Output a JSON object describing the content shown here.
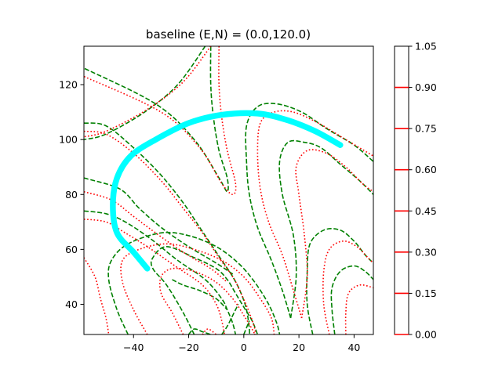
{
  "chart_data": {
    "type": "contour",
    "title": "baseline (E,N) = (0.0,120.0)",
    "xlabel": "",
    "ylabel": "",
    "xlim": [
      -58,
      47
    ],
    "ylim": [
      29,
      134
    ],
    "x_ticks": [
      -40,
      -20,
      0,
      20,
      40
    ],
    "x_tick_labels": [
      "−40",
      "−20",
      "0",
      "20",
      "40"
    ],
    "y_ticks": [
      40,
      60,
      80,
      100,
      120
    ],
    "y_tick_labels": [
      "40",
      "60",
      "80",
      "100",
      "120"
    ],
    "grid": false,
    "colorbar": {
      "range": [
        0.0,
        1.05
      ],
      "ticks": [
        0.0,
        0.15,
        0.3,
        0.45,
        0.6,
        0.75,
        0.9,
        1.05
      ],
      "tick_labels": [
        "0.00",
        "0.15",
        "0.30",
        "0.45",
        "0.60",
        "0.75",
        "0.90",
        "1.05"
      ],
      "line_levels": [
        0.0,
        0.15,
        0.3,
        0.45,
        0.6,
        0.75,
        0.9
      ],
      "line_color": "#ff0000"
    },
    "series": [
      {
        "style": "dashed",
        "color": "#008000",
        "contours": [
          [
            [
              -12,
              134
            ],
            [
              -12,
              120
            ],
            [
              -11,
              108
            ],
            [
              -9,
              96
            ],
            [
              -6,
              86
            ],
            [
              -6,
              81
            ],
            [
              -9,
              86
            ],
            [
              -18,
              100
            ],
            [
              -32,
              113
            ],
            [
              -58,
              126
            ]
          ],
          [
            [
              -58,
              106
            ],
            [
              -50,
              105
            ],
            [
              -40,
              97
            ],
            [
              -30,
              87
            ],
            [
              -22,
              77
            ],
            [
              -16,
              68
            ],
            [
              -10,
              59
            ],
            [
              -4,
              50
            ],
            [
              -1,
              44
            ],
            [
              1,
              38
            ],
            [
              2,
              31
            ],
            [
              2,
              29
            ]
          ],
          [
            [
              -58,
              86
            ],
            [
              -45,
              82
            ],
            [
              -38,
              75
            ],
            [
              -30,
              68
            ],
            [
              -20,
              61
            ],
            [
              -10,
              55
            ],
            [
              -4,
              51
            ]
          ],
          [
            [
              -58,
              74
            ],
            [
              -50,
              73
            ],
            [
              -43,
              70
            ],
            [
              -34,
              64
            ],
            [
              -24,
              56
            ],
            [
              -14,
              49
            ],
            [
              -8,
              42
            ],
            [
              -6,
              38
            ],
            [
              -4,
              33
            ],
            [
              -3,
              29
            ]
          ],
          [
            [
              -18,
              29
            ],
            [
              -22,
              37
            ],
            [
              -28,
              47
            ],
            [
              -33,
              53
            ],
            [
              -33,
              57
            ],
            [
              -28,
              61
            ],
            [
              -18,
              57
            ],
            [
              -10,
              53
            ],
            [
              -6,
              49
            ],
            [
              -3,
              44
            ],
            [
              0,
              39
            ],
            [
              3,
              34
            ],
            [
              5,
              29
            ]
          ],
          [
            [
              -42,
              29
            ],
            [
              -46,
              38
            ],
            [
              -49,
              49
            ],
            [
              -48,
              56
            ],
            [
              -42,
              62
            ],
            [
              -30,
              66
            ],
            [
              -20,
              65
            ],
            [
              -10,
              61
            ],
            [
              -2,
              55
            ],
            [
              4,
              48
            ],
            [
              9,
              40
            ],
            [
              12,
              33
            ],
            [
              13,
              29
            ]
          ],
          [
            [
              -20,
              29
            ],
            [
              -18,
              31
            ],
            [
              -15,
              30
            ],
            [
              -12,
              29
            ]
          ],
          [
            [
              0,
              29
            ],
            [
              2,
              34
            ]
          ],
          [
            [
              -26,
              49
            ],
            [
              -22,
              47
            ],
            [
              -16,
              45
            ],
            [
              -10,
              42
            ],
            [
              -6,
              38
            ]
          ],
          [
            [
              17,
              35
            ],
            [
              14,
              45
            ],
            [
              10,
              56
            ],
            [
              5,
              68
            ],
            [
              2,
              80
            ],
            [
              1,
              92
            ],
            [
              1,
              105
            ],
            [
              5,
              112
            ],
            [
              12,
              113
            ],
            [
              21,
              110
            ],
            [
              30,
              104
            ],
            [
              40,
              98
            ],
            [
              47,
              92
            ]
          ],
          [
            [
              17,
              35
            ],
            [
              19,
              50
            ],
            [
              18,
              65
            ],
            [
              14,
              80
            ],
            [
              13,
              92
            ],
            [
              16,
              99
            ],
            [
              22,
              99
            ],
            [
              28,
              97
            ],
            [
              35,
              91
            ],
            [
              42,
              85
            ],
            [
              47,
              80
            ]
          ],
          [
            [
              25,
              29
            ],
            [
              23,
              40
            ],
            [
              23,
              52
            ],
            [
              24,
              62
            ],
            [
              29,
              67
            ],
            [
              35,
              67
            ],
            [
              40,
              63
            ],
            [
              44,
              58
            ],
            [
              47,
              55
            ]
          ],
          [
            [
              33,
              29
            ],
            [
              32,
              38
            ],
            [
              32,
              46
            ],
            [
              35,
              52
            ],
            [
              40,
              54
            ],
            [
              44,
              52
            ],
            [
              47,
              49
            ]
          ],
          [
            [
              -8,
              29
            ],
            [
              -6,
              32
            ],
            [
              -4,
              36
            ],
            [
              -2,
              40
            ]
          ],
          [
            [
              -14,
              134
            ],
            [
              -24,
              120
            ],
            [
              -36,
              110
            ],
            [
              -50,
              102
            ],
            [
              -58,
              100
            ]
          ]
        ]
      },
      {
        "style": "dotted",
        "color": "#ff0000",
        "contours": [
          [
            [
              -9,
              134
            ],
            [
              -9,
              120
            ],
            [
              -8,
              108
            ],
            [
              -6,
              96
            ],
            [
              -3,
              84
            ],
            [
              -4,
              80
            ],
            [
              -8,
              84
            ],
            [
              -16,
              97
            ],
            [
              -30,
              110
            ],
            [
              -58,
              123
            ]
          ],
          [
            [
              -58,
              103
            ],
            [
              -50,
              102
            ],
            [
              -40,
              95
            ],
            [
              -30,
              85
            ],
            [
              -22,
              75
            ],
            [
              -15,
              66
            ],
            [
              -9,
              57
            ],
            [
              -4,
              50
            ],
            [
              -1,
              44
            ],
            [
              2,
              37
            ],
            [
              4,
              31
            ],
            [
              4,
              29
            ]
          ],
          [
            [
              -58,
              81
            ],
            [
              -48,
              78
            ],
            [
              -40,
              72
            ],
            [
              -32,
              66
            ],
            [
              -22,
              59
            ],
            [
              -12,
              53
            ],
            [
              -6,
              48
            ]
          ],
          [
            [
              -58,
              71
            ],
            [
              -50,
              70
            ],
            [
              -43,
              66
            ],
            [
              -35,
              61
            ],
            [
              -25,
              54
            ],
            [
              -15,
              47
            ],
            [
              -10,
              40
            ],
            [
              -8,
              34
            ],
            [
              -7,
              29
            ]
          ],
          [
            [
              -35,
              29
            ],
            [
              -40,
              38
            ],
            [
              -44,
              48
            ],
            [
              -44,
              56
            ],
            [
              -38,
              60
            ],
            [
              -28,
              62
            ],
            [
              -18,
              60
            ],
            [
              -8,
              56
            ],
            [
              0,
              50
            ],
            [
              6,
              42
            ],
            [
              10,
              35
            ],
            [
              11,
              29
            ]
          ],
          [
            [
              -22,
              29
            ],
            [
              -26,
              37
            ],
            [
              -30,
              44
            ],
            [
              -30,
              50
            ],
            [
              -26,
              53
            ],
            [
              -18,
              52
            ],
            [
              -10,
              48
            ],
            [
              -4,
              42
            ],
            [
              0,
              36
            ],
            [
              3,
              31
            ],
            [
              4,
              29
            ]
          ],
          [
            [
              -15,
              29
            ],
            [
              -13,
              31
            ],
            [
              -10,
              29
            ]
          ],
          [
            [
              -58,
              57
            ],
            [
              -54,
              50
            ],
            [
              -52,
              42
            ],
            [
              -50,
              35
            ],
            [
              -49,
              29
            ]
          ],
          [
            [
              21,
              35
            ],
            [
              18,
              45
            ],
            [
              14,
              58
            ],
            [
              9,
              70
            ],
            [
              6,
              82
            ],
            [
              5,
              95
            ],
            [
              6,
              106
            ],
            [
              11,
              110
            ],
            [
              18,
              110
            ],
            [
              27,
              106
            ],
            [
              37,
              100
            ],
            [
              47,
              94
            ]
          ],
          [
            [
              21,
              35
            ],
            [
              23,
              50
            ],
            [
              22,
              65
            ],
            [
              20,
              80
            ],
            [
              19,
              90
            ],
            [
              23,
              96
            ],
            [
              30,
              95
            ],
            [
              37,
              90
            ],
            [
              43,
              84
            ],
            [
              47,
              81
            ]
          ],
          [
            [
              31,
              29
            ],
            [
              29,
              40
            ],
            [
              29,
              52
            ],
            [
              31,
              60
            ],
            [
              36,
              63
            ],
            [
              41,
              61
            ],
            [
              45,
              57
            ],
            [
              47,
              55
            ]
          ],
          [
            [
              37,
              29
            ],
            [
              37,
              37
            ],
            [
              38,
              44
            ],
            [
              42,
              47
            ],
            [
              47,
              46
            ]
          ],
          [
            [
              -12,
              134
            ],
            [
              -22,
              121
            ],
            [
              -35,
              111
            ],
            [
              -50,
              103
            ],
            [
              -58,
              101
            ]
          ]
        ]
      },
      {
        "style": "thick-solid",
        "color": "#00ffff",
        "contours": [
          [
            [
              -35,
              53
            ],
            [
              -40,
              59
            ],
            [
              -46,
              66
            ],
            [
              -47.5,
              76
            ],
            [
              -46,
              86
            ],
            [
              -41,
              94
            ],
            [
              -32,
              100
            ],
            [
              -20,
              106
            ],
            [
              -8,
              109
            ],
            [
              5,
              109.5
            ],
            [
              16,
              107
            ],
            [
              26,
              103
            ],
            [
              35,
              98
            ]
          ]
        ]
      }
    ]
  }
}
